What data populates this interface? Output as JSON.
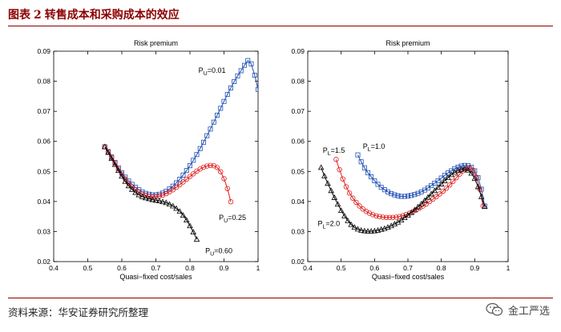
{
  "figure": {
    "title_prefix": "图表",
    "title_number": "2",
    "title_text": "转售成本和采购成本的效应",
    "source": "资料来源：华安证券研究所整理",
    "watermark": "金工严选"
  },
  "colors": {
    "blue": "#1f4fb4",
    "red": "#e01e1e",
    "black": "#000000",
    "title": "#8b0000"
  },
  "chart_data": [
    {
      "type": "line",
      "title": "Risk premium",
      "xlabel": "Quasi−fixed cost/sales",
      "ylabel": "",
      "xlim": [
        0.4,
        1.0
      ],
      "ylim": [
        0.02,
        0.09
      ],
      "xticks": [
        0.4,
        0.5,
        0.6,
        0.7,
        0.8,
        0.9,
        1.0
      ],
      "xtick_labels": [
        "0.4",
        "0.5",
        "0.6",
        "0.7",
        "0.8",
        "0.9",
        "1"
      ],
      "yticks": [
        0.02,
        0.03,
        0.04,
        0.05,
        0.06,
        0.07,
        0.08,
        0.09
      ],
      "ytick_labels": [
        "0.02",
        "0.03",
        "0.04",
        "0.05",
        "0.06",
        "0.07",
        "0.08",
        "0.09"
      ],
      "series": [
        {
          "name": "PU=0.01",
          "label_base": "P",
          "label_sub": "U",
          "label_val": "=0.01",
          "color": "#1f4fb4",
          "marker": "square",
          "x": [
            0.55,
            0.56,
            0.57,
            0.58,
            0.59,
            0.6,
            0.61,
            0.62,
            0.63,
            0.64,
            0.65,
            0.66,
            0.67,
            0.68,
            0.69,
            0.7,
            0.71,
            0.72,
            0.73,
            0.74,
            0.75,
            0.76,
            0.77,
            0.78,
            0.79,
            0.8,
            0.81,
            0.82,
            0.83,
            0.84,
            0.85,
            0.86,
            0.87,
            0.88,
            0.89,
            0.9,
            0.91,
            0.92,
            0.93,
            0.94,
            0.95,
            0.96,
            0.97,
            0.98,
            0.99,
            1.0
          ],
          "y": [
            0.0582,
            0.0566,
            0.0548,
            0.053,
            0.0512,
            0.0496,
            0.0481,
            0.0468,
            0.0457,
            0.0447,
            0.0439,
            0.0432,
            0.0427,
            0.0424,
            0.0422,
            0.0422,
            0.0424,
            0.0428,
            0.0434,
            0.0442,
            0.0451,
            0.0462,
            0.0474,
            0.0488,
            0.0503,
            0.0519,
            0.0537,
            0.0556,
            0.0576,
            0.0597,
            0.0619,
            0.0641,
            0.0664,
            0.0687,
            0.071,
            0.0733,
            0.0756,
            0.0778,
            0.0799,
            0.0818,
            0.0835,
            0.0853,
            0.0869,
            0.0858,
            0.082,
            0.0773
          ]
        },
        {
          "name": "PU=0.25",
          "label_base": "P",
          "label_sub": "U",
          "label_val": "=0.25",
          "color": "#e01e1e",
          "marker": "circle",
          "x": [
            0.55,
            0.56,
            0.57,
            0.58,
            0.59,
            0.6,
            0.61,
            0.62,
            0.63,
            0.64,
            0.65,
            0.66,
            0.67,
            0.68,
            0.69,
            0.7,
            0.71,
            0.72,
            0.73,
            0.74,
            0.75,
            0.76,
            0.77,
            0.78,
            0.79,
            0.8,
            0.81,
            0.82,
            0.83,
            0.84,
            0.85,
            0.86,
            0.87,
            0.88,
            0.89,
            0.9,
            0.91,
            0.92
          ],
          "y": [
            0.0582,
            0.0565,
            0.0546,
            0.0527,
            0.0508,
            0.0491,
            0.0475,
            0.0461,
            0.0449,
            0.0439,
            0.0431,
            0.0425,
            0.042,
            0.0417,
            0.0416,
            0.0416,
            0.0418,
            0.0421,
            0.0426,
            0.0432,
            0.0439,
            0.0447,
            0.0456,
            0.0465,
            0.0474,
            0.0483,
            0.0492,
            0.0501,
            0.0508,
            0.0514,
            0.0518,
            0.052,
            0.0519,
            0.0513,
            0.0499,
            0.0476,
            0.0443,
            0.0399
          ]
        },
        {
          "name": "PU=0.60",
          "label_base": "P",
          "label_sub": "U",
          "label_val": "=0.60",
          "color": "#000000",
          "marker": "triangle",
          "x": [
            0.55,
            0.56,
            0.57,
            0.58,
            0.59,
            0.6,
            0.61,
            0.62,
            0.63,
            0.64,
            0.65,
            0.66,
            0.67,
            0.68,
            0.69,
            0.7,
            0.71,
            0.72,
            0.73,
            0.74,
            0.75,
            0.76,
            0.77,
            0.78,
            0.79,
            0.8,
            0.81,
            0.82
          ],
          "y": [
            0.0582,
            0.0563,
            0.0543,
            0.0523,
            0.0503,
            0.0484,
            0.0467,
            0.0452,
            0.044,
            0.043,
            0.0422,
            0.0416,
            0.0412,
            0.0409,
            0.0406,
            0.0404,
            0.0402,
            0.0399,
            0.0396,
            0.0391,
            0.0385,
            0.0377,
            0.0367,
            0.0354,
            0.0338,
            0.0319,
            0.0298,
            0.0274
          ]
        }
      ],
      "annotations": [
        {
          "series": 0,
          "lx": 0.825,
          "ly": 0.0828,
          "base": "P",
          "sub": "U",
          "val": "=0.01"
        },
        {
          "series": 1,
          "lx": 0.885,
          "ly": 0.0338,
          "base": "P",
          "sub": "U",
          "val": "=0.25"
        },
        {
          "series": 2,
          "lx": 0.845,
          "ly": 0.0228,
          "base": "P",
          "sub": "U",
          "val": "=0.60"
        }
      ]
    },
    {
      "type": "line",
      "title": "Risk premium",
      "xlabel": "Quasi−fixed cost/sales",
      "ylabel": "",
      "xlim": [
        0.4,
        1.0
      ],
      "ylim": [
        0.02,
        0.09
      ],
      "xticks": [
        0.4,
        0.5,
        0.6,
        0.7,
        0.8,
        0.9,
        1.0
      ],
      "xtick_labels": [
        "0.4",
        "0.5",
        "0.6",
        "0.7",
        "0.8",
        "0.9",
        "1"
      ],
      "yticks": [
        0.02,
        0.03,
        0.04,
        0.05,
        0.06,
        0.07,
        0.08,
        0.09
      ],
      "ytick_labels": [
        "0.02",
        "0.03",
        "0.04",
        "0.05",
        "0.06",
        "0.07",
        "0.08",
        "0.09"
      ],
      "series": [
        {
          "name": "PL=1.0",
          "label_base": "P",
          "label_sub": "L",
          "label_val": "=1.0",
          "color": "#1f4fb4",
          "marker": "square",
          "x": [
            0.55,
            0.56,
            0.57,
            0.58,
            0.59,
            0.6,
            0.61,
            0.62,
            0.63,
            0.64,
            0.65,
            0.66,
            0.67,
            0.68,
            0.69,
            0.7,
            0.71,
            0.72,
            0.73,
            0.74,
            0.75,
            0.76,
            0.77,
            0.78,
            0.79,
            0.8,
            0.81,
            0.82,
            0.83,
            0.84,
            0.85,
            0.86,
            0.87,
            0.88,
            0.89,
            0.9,
            0.91,
            0.92,
            0.93
          ],
          "y": [
            0.0555,
            0.0532,
            0.0512,
            0.0496,
            0.0482,
            0.0469,
            0.0457,
            0.0447,
            0.0439,
            0.0432,
            0.0426,
            0.0422,
            0.0419,
            0.0417,
            0.0417,
            0.0418,
            0.042,
            0.0423,
            0.0427,
            0.0432,
            0.0438,
            0.0445,
            0.0453,
            0.0461,
            0.0469,
            0.0478,
            0.0487,
            0.0495,
            0.0502,
            0.0509,
            0.0514,
            0.0518,
            0.052,
            0.0519,
            0.0514,
            0.0502,
            0.0479,
            0.0441,
            0.0385
          ]
        },
        {
          "name": "PL=1.5",
          "label_base": "P",
          "label_sub": "L",
          "label_val": "=1.5",
          "color": "#e01e1e",
          "marker": "circle",
          "x": [
            0.485,
            0.495,
            0.505,
            0.515,
            0.525,
            0.535,
            0.545,
            0.555,
            0.565,
            0.575,
            0.585,
            0.595,
            0.605,
            0.615,
            0.625,
            0.635,
            0.645,
            0.655,
            0.665,
            0.675,
            0.685,
            0.695,
            0.705,
            0.715,
            0.725,
            0.735,
            0.745,
            0.755,
            0.765,
            0.775,
            0.785,
            0.795,
            0.805,
            0.815,
            0.825,
            0.835,
            0.845,
            0.855,
            0.865,
            0.875,
            0.885,
            0.895,
            0.905,
            0.915,
            0.925
          ],
          "y": [
            0.054,
            0.0506,
            0.0475,
            0.0449,
            0.0428,
            0.0411,
            0.0397,
            0.0385,
            0.0375,
            0.0367,
            0.0361,
            0.0356,
            0.0352,
            0.035,
            0.0348,
            0.0347,
            0.0347,
            0.0347,
            0.0348,
            0.035,
            0.0353,
            0.0357,
            0.0361,
            0.0366,
            0.0372,
            0.0378,
            0.0385,
            0.0392,
            0.04,
            0.0408,
            0.0416,
            0.0425,
            0.0434,
            0.0444,
            0.0455,
            0.0467,
            0.0479,
            0.0491,
            0.0502,
            0.051,
            0.0512,
            0.0504,
            0.0481,
            0.0441,
            0.0385
          ]
        },
        {
          "name": "PL=2.0",
          "label_base": "P",
          "label_sub": "L",
          "label_val": "=2.0",
          "color": "#000000",
          "marker": "triangle",
          "x": [
            0.44,
            0.45,
            0.46,
            0.47,
            0.48,
            0.49,
            0.5,
            0.51,
            0.52,
            0.53,
            0.54,
            0.55,
            0.56,
            0.57,
            0.58,
            0.59,
            0.6,
            0.61,
            0.62,
            0.63,
            0.64,
            0.65,
            0.66,
            0.67,
            0.68,
            0.69,
            0.7,
            0.71,
            0.72,
            0.73,
            0.74,
            0.75,
            0.76,
            0.77,
            0.78,
            0.79,
            0.8,
            0.81,
            0.82,
            0.83,
            0.84,
            0.85,
            0.86,
            0.87,
            0.88,
            0.89,
            0.9,
            0.91,
            0.92,
            0.93
          ],
          "y": [
            0.0513,
            0.0485,
            0.046,
            0.0436,
            0.0413,
            0.0391,
            0.037,
            0.0352,
            0.0336,
            0.0323,
            0.0314,
            0.0308,
            0.0304,
            0.0302,
            0.0301,
            0.0301,
            0.0302,
            0.0304,
            0.0307,
            0.031,
            0.0314,
            0.0319,
            0.0325,
            0.0331,
            0.0338,
            0.0346,
            0.0354,
            0.0363,
            0.0372,
            0.0382,
            0.0392,
            0.0403,
            0.0414,
            0.0425,
            0.0436,
            0.0447,
            0.0458,
            0.0469,
            0.0479,
            0.0489,
            0.0497,
            0.0503,
            0.0507,
            0.0508,
            0.0504,
            0.0494,
            0.0476,
            0.0449,
            0.0416,
            0.0383
          ]
        }
      ],
      "annotations": [
        {
          "series": 0,
          "lx": 0.565,
          "ly": 0.0575,
          "base": "P",
          "sub": "L",
          "val": "=1.0"
        },
        {
          "series": 1,
          "lx": 0.445,
          "ly": 0.0562,
          "base": "P",
          "sub": "L",
          "val": "=1.5"
        },
        {
          "series": 2,
          "lx": 0.43,
          "ly": 0.0318,
          "base": "P",
          "sub": "L",
          "val": "=2.0"
        }
      ]
    }
  ]
}
